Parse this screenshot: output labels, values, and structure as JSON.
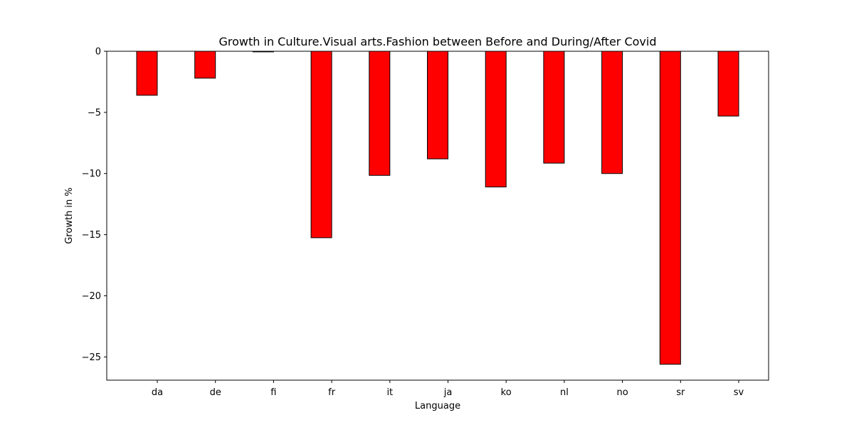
{
  "chart_data": {
    "type": "bar",
    "title": "Growth in Culture.Visual arts.Fashion between Before and During/After Covid",
    "xlabel": "Language",
    "ylabel": "Growth in %",
    "categories": [
      "da",
      "de",
      "fi",
      "fr",
      "it",
      "ja",
      "ko",
      "nl",
      "no",
      "sr",
      "sv"
    ],
    "values": [
      -3.6,
      -2.2,
      -0.05,
      -15.25,
      -10.15,
      -8.8,
      -11.1,
      -9.15,
      -10.0,
      -25.6,
      -5.3
    ],
    "ylim": [
      -26.9,
      0
    ],
    "yticks": [
      0,
      -5,
      -10,
      -15,
      -20,
      -25
    ],
    "ytick_labels": [
      "0",
      "−5",
      "−10",
      "−15",
      "−20",
      "−25"
    ],
    "bar_color": "#ff0000",
    "bar_edge_color": "#000000",
    "grid": false,
    "legend": "none"
  }
}
